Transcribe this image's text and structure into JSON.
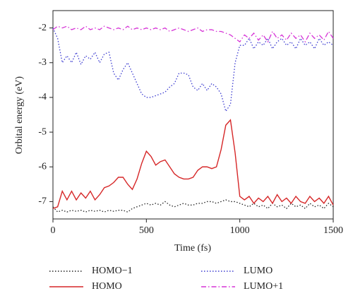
{
  "chart_data": {
    "type": "line",
    "xlabel": "Time (fs)",
    "ylabel": "Orbital energy (eV)",
    "x": [
      0,
      25,
      50,
      75,
      100,
      125,
      150,
      175,
      200,
      225,
      250,
      275,
      300,
      325,
      350,
      375,
      400,
      425,
      450,
      475,
      500,
      525,
      550,
      575,
      600,
      625,
      650,
      675,
      700,
      725,
      750,
      775,
      800,
      825,
      850,
      875,
      900,
      925,
      950,
      975,
      1000,
      1025,
      1050,
      1075,
      1100,
      1125,
      1150,
      1175,
      1200,
      1225,
      1250,
      1275,
      1300,
      1325,
      1350,
      1375,
      1400,
      1425,
      1450,
      1475,
      1500
    ],
    "xlim": [
      0,
      1500
    ],
    "xticks": [
      0,
      500,
      1000,
      1500
    ],
    "ylim": [
      -7.5,
      -1.5
    ],
    "yticks": [
      -2,
      -3,
      -4,
      -5,
      -6,
      -7
    ],
    "series": [
      {
        "name": "HOMO−1",
        "color": "#222222",
        "linestyle": "dotted",
        "values": [
          -7.15,
          -7.3,
          -7.25,
          -7.3,
          -7.25,
          -7.28,
          -7.25,
          -7.3,
          -7.25,
          -7.28,
          -7.25,
          -7.3,
          -7.25,
          -7.28,
          -7.25,
          -7.25,
          -7.3,
          -7.2,
          -7.15,
          -7.1,
          -7.05,
          -7.1,
          -7.05,
          -7.1,
          -7.0,
          -7.1,
          -7.15,
          -7.1,
          -7.05,
          -7.1,
          -7.1,
          -7.05,
          -7.05,
          -7.0,
          -7.0,
          -7.05,
          -7.0,
          -6.95,
          -7.0,
          -7.0,
          -7.05,
          -7.1,
          -7.15,
          -7.05,
          -7.15,
          -7.1,
          -7.2,
          -7.05,
          -7.15,
          -7.1,
          -7.2,
          -7.05,
          -7.15,
          -7.1,
          -7.2,
          -7.05,
          -7.15,
          -7.1,
          -7.2,
          -7.05,
          -7.15
        ]
      },
      {
        "name": "HOMO",
        "color": "#d62728",
        "linestyle": "solid",
        "values": [
          -7.2,
          -7.15,
          -6.7,
          -6.95,
          -6.7,
          -6.95,
          -6.75,
          -6.9,
          -6.7,
          -6.95,
          -6.8,
          -6.6,
          -6.55,
          -6.45,
          -6.3,
          -6.3,
          -6.5,
          -6.65,
          -6.35,
          -5.9,
          -5.55,
          -5.7,
          -5.95,
          -5.85,
          -5.8,
          -6.0,
          -6.2,
          -6.3,
          -6.35,
          -6.35,
          -6.3,
          -6.1,
          -6.0,
          -6.0,
          -6.05,
          -6.0,
          -5.5,
          -4.8,
          -4.65,
          -5.6,
          -6.85,
          -6.95,
          -6.85,
          -7.05,
          -6.9,
          -7.0,
          -6.85,
          -7.05,
          -6.8,
          -7.0,
          -6.9,
          -7.05,
          -6.85,
          -7.0,
          -7.05,
          -6.85,
          -7.0,
          -6.9,
          -7.05,
          -6.85,
          -7.1
        ]
      },
      {
        "name": "LUMO",
        "color": "#3a3ad0",
        "linestyle": "dotted",
        "values": [
          -2.0,
          -2.3,
          -3.0,
          -2.8,
          -3.0,
          -2.7,
          -3.05,
          -2.8,
          -2.9,
          -2.7,
          -3.0,
          -2.75,
          -2.7,
          -3.3,
          -3.5,
          -3.2,
          -3.0,
          -3.3,
          -3.6,
          -3.9,
          -4.0,
          -4.0,
          -3.95,
          -3.9,
          -3.85,
          -3.7,
          -3.6,
          -3.3,
          -3.3,
          -3.35,
          -3.7,
          -3.8,
          -3.6,
          -3.8,
          -3.6,
          -3.7,
          -3.9,
          -4.4,
          -4.2,
          -3.0,
          -2.5,
          -2.5,
          -2.3,
          -2.6,
          -2.4,
          -2.5,
          -2.3,
          -2.6,
          -2.4,
          -2.3,
          -2.5,
          -2.4,
          -2.6,
          -2.3,
          -2.5,
          -2.4,
          -2.6,
          -2.3,
          -2.5,
          -2.4,
          -2.5
        ]
      },
      {
        "name": "LUMO+1",
        "color": "#d633d6",
        "linestyle": "dashdot",
        "values": [
          -2.05,
          -1.95,
          -2.0,
          -1.95,
          -2.05,
          -2.0,
          -2.05,
          -1.95,
          -2.05,
          -2.0,
          -2.05,
          -1.95,
          -2.0,
          -2.05,
          -2.0,
          -2.05,
          -1.95,
          -2.05,
          -2.0,
          -2.05,
          -2.0,
          -2.05,
          -2.0,
          -2.05,
          -2.0,
          -2.1,
          -2.05,
          -2.0,
          -2.05,
          -2.1,
          -2.05,
          -2.0,
          -2.1,
          -2.05,
          -2.05,
          -2.1,
          -2.1,
          -2.15,
          -2.2,
          -2.3,
          -2.4,
          -2.2,
          -2.3,
          -2.15,
          -2.35,
          -2.2,
          -2.4,
          -2.1,
          -2.3,
          -2.2,
          -2.35,
          -2.15,
          -2.3,
          -2.2,
          -2.4,
          -2.15,
          -2.3,
          -2.2,
          -2.35,
          -2.1,
          -2.3
        ]
      }
    ]
  }
}
